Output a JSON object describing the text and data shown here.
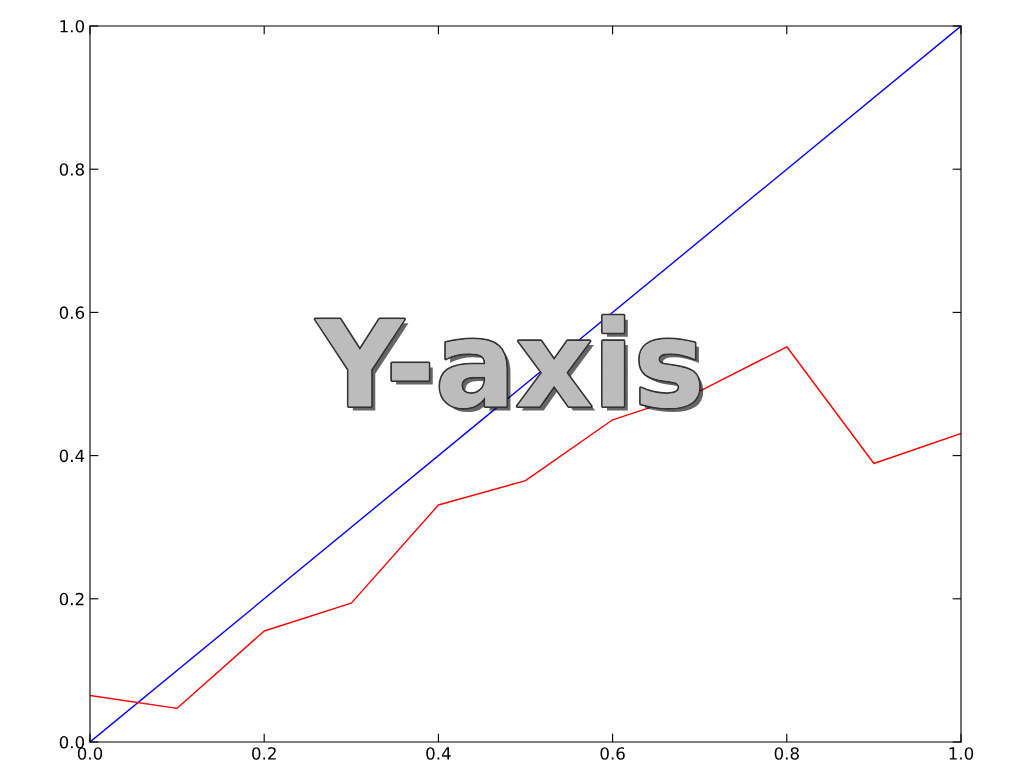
{
  "chart_data": {
    "type": "line",
    "series": [
      {
        "color": "#0000ff",
        "x": [
          0,
          1
        ],
        "values": [
          0,
          1
        ]
      },
      {
        "color": "#ff0000",
        "x": [
          0,
          0.1,
          0.2,
          0.3,
          0.4,
          0.5,
          0.6,
          0.7,
          0.8,
          0.9,
          1.0
        ],
        "values": [
          0.065,
          0.047,
          0.155,
          0.194,
          0.331,
          0.365,
          0.45,
          0.49,
          0.552,
          0.389,
          0.431
        ]
      }
    ],
    "xlim": [
      0,
      1
    ],
    "ylim": [
      0,
      1
    ],
    "xticks": [
      {
        "value": 0,
        "label": "0.0"
      },
      0.2,
      0.4,
      0.6,
      0.8,
      {
        "value": 1,
        "label": "1.0"
      }
    ],
    "yticks": [
      {
        "value": 0,
        "label": "0.0"
      },
      0.2,
      0.4,
      0.6,
      0.8,
      {
        "value": 1,
        "label": "1.0"
      }
    ],
    "annotations": [
      "Y-axis"
    ],
    "grid": false,
    "marker": "none",
    "line_style": "solid"
  }
}
